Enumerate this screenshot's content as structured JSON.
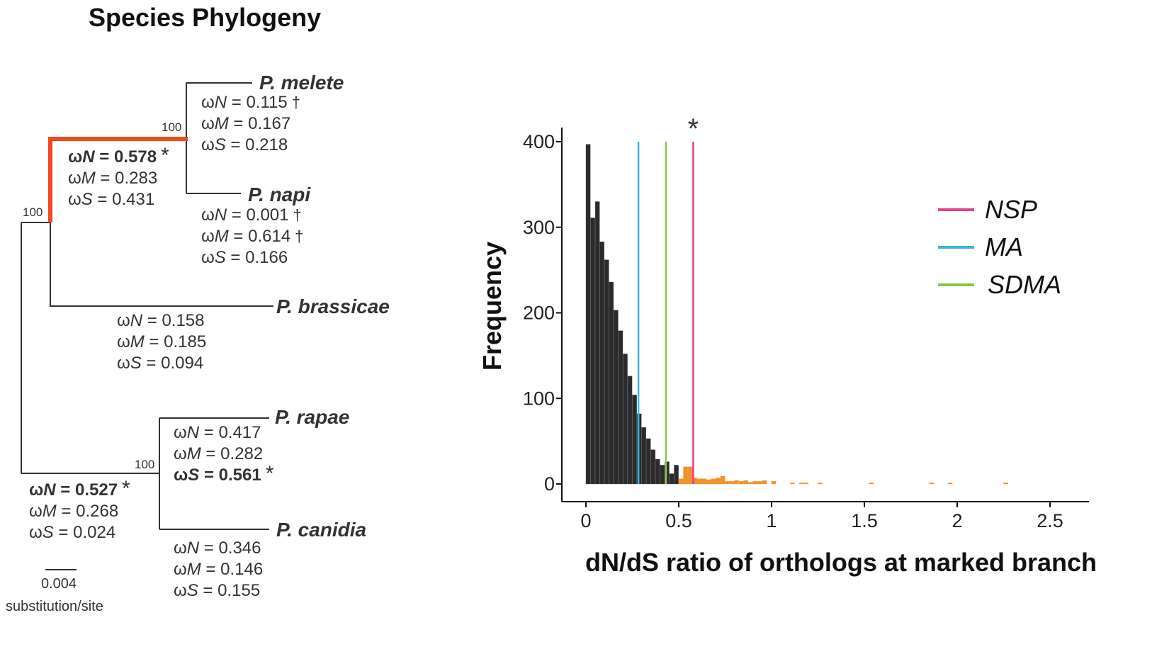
{
  "figure": {
    "title": "Species Phylogeny"
  },
  "tree": {
    "taxa": {
      "melete": "P. melete",
      "napi": "P. napi",
      "brassicae": "P. brassicae",
      "rapae": "P. rapae",
      "canidia": "P. canidia"
    },
    "bootstrap": {
      "melete_napi": "100",
      "napi_brassicae": "100",
      "rapae_canidia": "100"
    },
    "highlight_color": "#f04a1e",
    "omegas": {
      "melete": {
        "N": "0.115",
        "N_mark": "†",
        "M": "0.167",
        "M_mark": "",
        "S": "0.218",
        "S_mark": ""
      },
      "marked": {
        "N": "0.578",
        "N_mark": "*",
        "M": "0.283",
        "M_mark": "",
        "S": "0.431",
        "S_mark": ""
      },
      "napi": {
        "N": "0.001",
        "N_mark": "†",
        "M": "0.614",
        "M_mark": "†",
        "S": "0.166",
        "S_mark": ""
      },
      "brassicae": {
        "N": "0.158",
        "N_mark": "",
        "M": "0.185",
        "M_mark": "",
        "S": "0.094",
        "S_mark": ""
      },
      "rapae": {
        "N": "0.417",
        "N_mark": "",
        "M": "0.282",
        "M_mark": "",
        "S": "0.561",
        "S_mark": "*"
      },
      "rapae_canidia_stem": {
        "N": "0.527",
        "N_mark": "*",
        "M": "0.268",
        "M_mark": "",
        "S": "0.024",
        "S_mark": ""
      },
      "canidia": {
        "N": "0.346",
        "N_mark": "",
        "M": "0.146",
        "M_mark": "",
        "S": "0.155",
        "S_mark": ""
      }
    },
    "scale_bar": {
      "value": "0.004",
      "unit": "substitution/site"
    }
  },
  "chart_data": {
    "type": "bar",
    "subtype": "histogram",
    "xlabel": "dN/dS ratio of orthologs at marked branch",
    "ylabel": "Frequency",
    "xlim": [
      -0.05,
      2.6
    ],
    "ylim": [
      0,
      420
    ],
    "xticks": [
      "0",
      "0.5",
      "1",
      "1.5",
      "2",
      "2.5"
    ],
    "yticks": [
      "0",
      "100",
      "200",
      "300",
      "400"
    ],
    "bin_width": 0.025,
    "bin_start": 0.0,
    "values": [
      397,
      311,
      330,
      283,
      262,
      236,
      203,
      179,
      152,
      126,
      104,
      82,
      66,
      53,
      40,
      29,
      22,
      26,
      12,
      22,
      6,
      20,
      20,
      7,
      6,
      6,
      5,
      6,
      7,
      9,
      3,
      3,
      4,
      3,
      4,
      2,
      3,
      3,
      4,
      0,
      3,
      0,
      0,
      0,
      1,
      0,
      1,
      1,
      0,
      0,
      1,
      0,
      0,
      0,
      0,
      0,
      0,
      0,
      0,
      0,
      0,
      1,
      0,
      0,
      0,
      0,
      0,
      0,
      0,
      0,
      0,
      0,
      0,
      0,
      1,
      0,
      0,
      0,
      1,
      0,
      0,
      0,
      0,
      0,
      0,
      0,
      0,
      0,
      0,
      0,
      1,
      0,
      0,
      0,
      0,
      0,
      0,
      0,
      0,
      0,
      0,
      0,
      0
    ],
    "highlight_from_bin": 20,
    "colors": {
      "base": "#2b2b2b",
      "highlight": "#f0922b"
    },
    "reference_lines": [
      {
        "name": "NSP",
        "x": 0.578,
        "color": "#e83e8c",
        "marker": "*"
      },
      {
        "name": "MA",
        "x": 0.283,
        "color": "#3bb4e0",
        "marker": ""
      },
      {
        "name": "SDMA",
        "x": 0.431,
        "color": "#8bc34a",
        "marker": ""
      }
    ],
    "legend": {
      "position": "right",
      "items": [
        "NSP",
        "MA",
        "SDMA"
      ]
    }
  }
}
